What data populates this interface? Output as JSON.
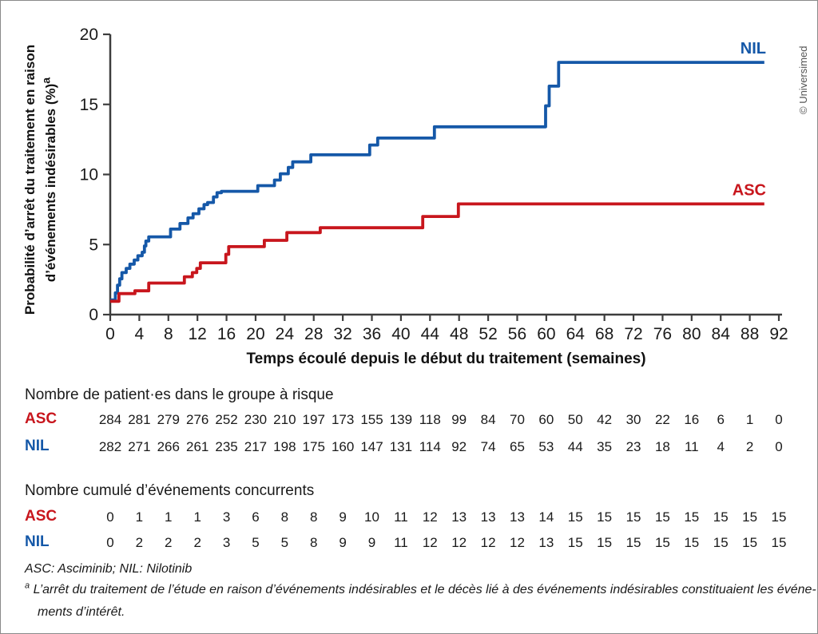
{
  "branding": {
    "copyright": "© Universimed"
  },
  "colors": {
    "asc_red": "#c8161d",
    "nil_blue": "#1558a8",
    "axis": "#3d3d3d",
    "text": "#1a1a1a"
  },
  "chart_data": {
    "type": "line",
    "subtype": "kaplan-meier-step",
    "title": "",
    "ylabel_line1": "Probabilité d’arrêt du traitement en raison",
    "ylabel_line2": "d’événements indésirables (%)",
    "ylabel_sup": "a",
    "xlabel": "Temps écoulé depuis le début du traitement (semaines)",
    "xlim": [
      0,
      92
    ],
    "ylim": [
      0,
      20
    ],
    "xticks": [
      0,
      4,
      8,
      12,
      16,
      20,
      24,
      28,
      32,
      36,
      40,
      44,
      48,
      52,
      56,
      60,
      64,
      68,
      72,
      76,
      80,
      84,
      88,
      92
    ],
    "yticks": [
      0,
      5,
      10,
      15,
      20
    ],
    "grid": false,
    "legend_position": "end-of-line-labels",
    "series": [
      {
        "name": "NIL",
        "color": "#1558a8",
        "points": [
          [
            0,
            1.05
          ],
          [
            0.7,
            1.55
          ],
          [
            1.0,
            2.1
          ],
          [
            1.3,
            2.55
          ],
          [
            1.6,
            3.0
          ],
          [
            2.2,
            3.3
          ],
          [
            2.7,
            3.6
          ],
          [
            3.3,
            3.9
          ],
          [
            3.8,
            4.2
          ],
          [
            4.4,
            4.45
          ],
          [
            4.7,
            4.9
          ],
          [
            4.9,
            5.25
          ],
          [
            5.3,
            5.55
          ],
          [
            8.3,
            6.1
          ],
          [
            9.6,
            6.5
          ],
          [
            10.7,
            6.9
          ],
          [
            11.4,
            7.2
          ],
          [
            12.2,
            7.55
          ],
          [
            12.9,
            7.85
          ],
          [
            13.4,
            8.0
          ],
          [
            14.2,
            8.4
          ],
          [
            14.7,
            8.7
          ],
          [
            15.3,
            8.8
          ],
          [
            20.3,
            9.2
          ],
          [
            22.6,
            9.6
          ],
          [
            23.4,
            10.05
          ],
          [
            24.5,
            10.5
          ],
          [
            25.1,
            10.9
          ],
          [
            27.6,
            11.4
          ],
          [
            35.7,
            12.1
          ],
          [
            36.8,
            12.6
          ],
          [
            44.6,
            13.4
          ],
          [
            59.9,
            14.9
          ],
          [
            60.4,
            16.3
          ],
          [
            61.7,
            18.0
          ],
          [
            90,
            18.0
          ]
        ]
      },
      {
        "name": "ASC",
        "color": "#c8161d",
        "points": [
          [
            0,
            0.95
          ],
          [
            1.2,
            1.5
          ],
          [
            3.4,
            1.7
          ],
          [
            5.3,
            2.25
          ],
          [
            10.2,
            2.7
          ],
          [
            11.3,
            3.0
          ],
          [
            11.9,
            3.3
          ],
          [
            12.4,
            3.7
          ],
          [
            15.9,
            4.3
          ],
          [
            16.3,
            4.85
          ],
          [
            21.2,
            5.3
          ],
          [
            24.3,
            5.85
          ],
          [
            28.9,
            6.2
          ],
          [
            43.0,
            7.0
          ],
          [
            47.9,
            7.9
          ],
          [
            90,
            7.9
          ]
        ]
      }
    ]
  },
  "risk_table": {
    "title": "Nombre de patient·es dans le groupe à risque",
    "rows": [
      {
        "label": "ASC",
        "values": [
          284,
          281,
          279,
          276,
          252,
          230,
          210,
          197,
          173,
          155,
          139,
          118,
          99,
          84,
          70,
          60,
          50,
          42,
          30,
          22,
          16,
          6,
          1,
          0
        ]
      },
      {
        "label": "NIL",
        "values": [
          282,
          271,
          266,
          261,
          235,
          217,
          198,
          175,
          160,
          147,
          131,
          114,
          92,
          74,
          65,
          53,
          44,
          35,
          23,
          18,
          11,
          4,
          2,
          0
        ]
      }
    ]
  },
  "events_table": {
    "title": "Nombre cumulé d’événements concurrents",
    "rows": [
      {
        "label": "ASC",
        "values": [
          0,
          1,
          1,
          1,
          3,
          6,
          8,
          8,
          9,
          10,
          11,
          12,
          13,
          13,
          13,
          14,
          15,
          15,
          15,
          15,
          15,
          15,
          15,
          15
        ]
      },
      {
        "label": "NIL",
        "values": [
          0,
          2,
          2,
          2,
          3,
          5,
          5,
          8,
          9,
          9,
          11,
          12,
          12,
          12,
          12,
          13,
          15,
          15,
          15,
          15,
          15,
          15,
          15,
          15
        ]
      }
    ]
  },
  "footnotes": {
    "abbrev": "ASC: Asciminib; NIL: Nilotinib",
    "note_marker": "a",
    "note_line1": "L’arrêt du traitement de l’étude en raison d’événements indésirables et le décès lié à des événements indésirables constituaient les événe-",
    "note_line2": "ments d’intérêt."
  }
}
